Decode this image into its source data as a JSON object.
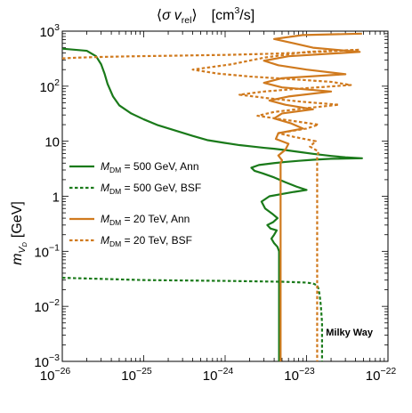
{
  "chart_data": {
    "type": "line",
    "title": {
      "open": "⟨",
      "sigma": "σ",
      "v": "v",
      "v_sub": "rel",
      "close": "⟩",
      "units_pre": "[cm",
      "units_sup": "3",
      "units_post": "/s]"
    },
    "xlabel": "",
    "ylabel": {
      "m": "m",
      "sub_V": "V",
      "sub_D": "D",
      "unit": "[GeV]"
    },
    "x_scale": "log",
    "y_scale": "log",
    "xlim": [
      1e-26,
      1e-22
    ],
    "ylim": [
      0.001,
      1000
    ],
    "x_ticks": [
      {
        "base": "10",
        "exp": "−26",
        "value": 1e-26
      },
      {
        "base": "10",
        "exp": "−25",
        "value": 1e-25
      },
      {
        "base": "10",
        "exp": "−24",
        "value": 1e-24
      },
      {
        "base": "10",
        "exp": "−23",
        "value": 1e-23
      },
      {
        "base": "10",
        "exp": "−22",
        "value": 1e-22
      }
    ],
    "y_ticks": [
      {
        "base": "10",
        "exp": "−3",
        "value": 0.001
      },
      {
        "base": "10",
        "exp": "−2",
        "value": 0.01
      },
      {
        "base": "10",
        "exp": "−1",
        "value": 0.1
      },
      {
        "base": "1",
        "exp": "",
        "value": 1
      },
      {
        "base": "10",
        "exp": "",
        "value": 10
      },
      {
        "base": "10",
        "exp": "2",
        "value": 100
      },
      {
        "base": "10",
        "exp": "3",
        "value": 1000
      }
    ],
    "grid": false,
    "legend_position": "left-middle",
    "colors": {
      "green": "#1a7a1a",
      "orange": "#d07a1e"
    },
    "annotation": "Milky Way",
    "series": [
      {
        "label": {
          "M": "M",
          "sub": "DM",
          "rest": " = 500 GeV,  Ann"
        },
        "color": "#1a7a1a",
        "dash": "solid",
        "x": [
          1e-26,
          2e-26,
          2.6e-26,
          3e-26,
          3.3e-26,
          3.6e-26,
          4.2e-26,
          5e-26,
          7e-26,
          1e-25,
          1.5e-25,
          2.5e-25,
          4e-25,
          6e-25,
          1e-24,
          1.5e-24,
          2.2e-24,
          3e-24,
          4e-24,
          5.5e-24,
          8e-24,
          1.2e-23,
          2e-23,
          3e-23,
          4.8e-23,
          2e-23,
          1.2e-23,
          8e-24,
          5.5e-24,
          4e-24,
          2.6e-24,
          2.1e-24,
          2.3e-24,
          2.9e-24,
          4e-24,
          5.5e-24,
          7.5e-24,
          1e-23,
          7e-24,
          5e-24,
          3.5e-24,
          2.8e-24,
          3.1e-24,
          3.8e-24,
          4.4e-24,
          3.9e-24,
          3.3e-24,
          3.6e-24,
          4.3e-24,
          4e-24,
          3.7e-24,
          4e-24,
          4.4e-24,
          4.6e-24,
          4.6e-24
        ],
        "y": [
          480,
          440,
          350,
          250,
          170,
          110,
          65,
          45,
          32,
          25,
          19.5,
          15.5,
          12.5,
          10.5,
          9.3,
          8.5,
          8,
          7.6,
          7.3,
          6.9,
          6.4,
          5.9,
          5.4,
          5.1,
          4.9,
          4.8,
          4.6,
          4.4,
          4.2,
          4,
          3.7,
          3.3,
          2.9,
          2.6,
          2.2,
          1.8,
          1.5,
          1.3,
          1.2,
          1.1,
          1,
          0.8,
          0.6,
          0.48,
          0.4,
          0.34,
          0.3,
          0.26,
          0.24,
          0.2,
          0.17,
          0.14,
          0.12,
          0.1,
          0.001
        ]
      },
      {
        "label": {
          "M": "M",
          "sub": "DM",
          "rest": " = 500 GeV,  BSF"
        },
        "color": "#1a7a1a",
        "dash": "dotted",
        "x": [
          1e-26,
          1e-25,
          1e-24,
          5e-24,
          1e-23,
          1.2e-23,
          1.35e-23,
          1.4e-23,
          1.45e-23,
          1.5e-23,
          1.55e-23,
          1.55e-23
        ],
        "y": [
          0.033,
          0.03,
          0.029,
          0.028,
          0.027,
          0.026,
          0.024,
          0.021,
          0.016,
          0.01,
          0.005,
          0.001
        ]
      },
      {
        "label": {
          "M": "M",
          "sub": "DM",
          "rest": " = 20 TeV,  Ann"
        },
        "color": "#d07a1e",
        "dash": "solid",
        "x": [
          4.8e-23,
          9e-24,
          4e-24,
          7e-24,
          1.2e-23,
          4.5e-23,
          6e-24,
          3e-24,
          4.5e-24,
          1e-23,
          3e-23,
          5e-24,
          3e-24,
          5e-24,
          2e-23,
          6e-24,
          3.5e-24,
          5.5e-24,
          1.2e-23,
          5e-24,
          4e-24,
          6.5e-24,
          9e-24,
          4.5e-24,
          4.2e-24,
          6e-24,
          5.5e-24,
          4.5e-24,
          5e-24,
          4.8e-24,
          4.8e-24
        ],
        "y": [
          900,
          850,
          720,
          600,
          500,
          420,
          350,
          290,
          240,
          200,
          165,
          140,
          115,
          95,
          80,
          65,
          55,
          46,
          38,
          32,
          26,
          21,
          17,
          14,
          11,
          9,
          7,
          5.5,
          4.5,
          4,
          0.001
        ]
      },
      {
        "label": {
          "M": "M",
          "sub": "DM",
          "rest": " = 20 TeV,  BSF"
        },
        "color": "#d07a1e",
        "dash": "dotted",
        "x": [
          1e-26,
          1.5e-26,
          3e-26,
          8e-26,
          1.5e-25,
          3e-25,
          5e-25,
          1e-24,
          2e-24,
          4e-24,
          1e-23,
          2.5e-23,
          4.5e-23,
          1e-23,
          3e-24,
          1.2e-24,
          4e-25,
          8e-25,
          2e-24,
          6e-24,
          2e-23,
          3.5e-23,
          8e-24,
          3e-24,
          1.5e-24,
          3.5e-24,
          9e-24,
          2.5e-23,
          1e-23,
          4e-24,
          2.5e-24,
          6e-24,
          1.4e-23,
          1e-23,
          4.5e-24,
          7e-24,
          1.3e-23,
          1.1e-23,
          1.4e-23,
          1.35e-23,
          1.35e-23
        ],
        "y": [
          320,
          330,
          340,
          350,
          355,
          360,
          365,
          370,
          380,
          390,
          410,
          440,
          460,
          420,
          330,
          250,
          200,
          170,
          150,
          135,
          120,
          105,
          90,
          80,
          70,
          60,
          52,
          46,
          40,
          34,
          29,
          24,
          20,
          17,
          14,
          12,
          10,
          8,
          6.5,
          5,
          0.001
        ]
      }
    ]
  }
}
